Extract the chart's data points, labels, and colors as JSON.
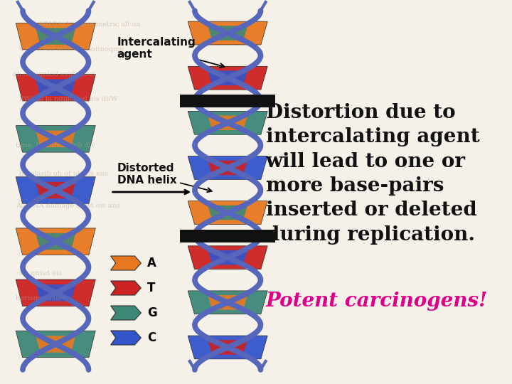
{
  "background_color": "#f5f0e8",
  "watermark_color": "#c8b8a0",
  "main_text": "Distortion due to\nintercalating agent\nwill lead to one or\nmore base-pairs\ninserted or deleted\nduring replication.",
  "main_text_color": "#111111",
  "main_text_fontsize": 20,
  "main_text_weight": "bold",
  "secondary_text": "Potent carcinogens!",
  "secondary_text_color": "#dd0088",
  "secondary_text_fontsize": 20,
  "secondary_text_weight": "bold",
  "label_intercalating": "Intercalating\nagent",
  "label_distorted": "Distorted\nDNA helix",
  "label_color": "#111111",
  "label_fontsize": 10,
  "figwidth": 7.2,
  "figheight": 5.4,
  "dpi": 100,
  "helix_color": "#5566bb",
  "colors_ATGC": [
    "#e87820",
    "#cc2222",
    "#3d8877",
    "#3355cc"
  ],
  "black_bar": "#111111"
}
